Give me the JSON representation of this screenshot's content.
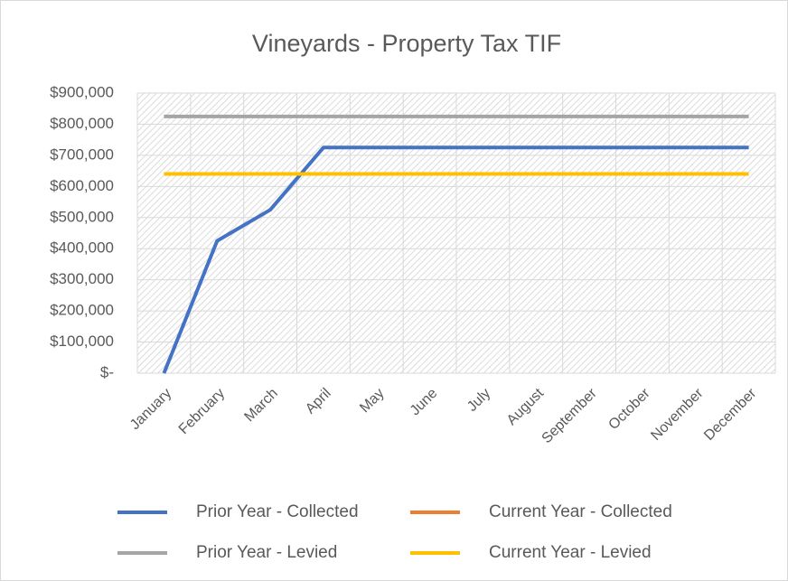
{
  "chart_data": {
    "type": "line",
    "title": "Vineyards - Property Tax TIF",
    "categories": [
      "January",
      "February",
      "March",
      "April",
      "May",
      "June",
      "July",
      "August",
      "September",
      "October",
      "November",
      "December"
    ],
    "series": [
      {
        "name": "Prior Year - Collected",
        "color": "#4472c4",
        "values": [
          0,
          425000,
          525000,
          725000,
          725000,
          725000,
          725000,
          725000,
          725000,
          725000,
          725000,
          725000
        ]
      },
      {
        "name": "Current Year - Collected",
        "color": "#ed7d31",
        "values": [
          null,
          null,
          null,
          null,
          null,
          null,
          null,
          null,
          null,
          null,
          null,
          null
        ]
      },
      {
        "name": "Prior Year - Levied",
        "color": "#a5a5a5",
        "values": [
          825000,
          825000,
          825000,
          825000,
          825000,
          825000,
          825000,
          825000,
          825000,
          825000,
          825000,
          825000
        ]
      },
      {
        "name": "Current Year - Levied",
        "color": "#ffc000",
        "values": [
          640000,
          640000,
          640000,
          640000,
          640000,
          640000,
          640000,
          640000,
          640000,
          640000,
          640000,
          640000
        ]
      }
    ],
    "ylim": [
      0,
      900000
    ],
    "yticks": [
      {
        "value": 0,
        "label": "$-"
      },
      {
        "value": 100000,
        "label": "$100,000"
      },
      {
        "value": 200000,
        "label": "$200,000"
      },
      {
        "value": 300000,
        "label": "$300,000"
      },
      {
        "value": 400000,
        "label": "$400,000"
      },
      {
        "value": 500000,
        "label": "$500,000"
      },
      {
        "value": 600000,
        "label": "$600,000"
      },
      {
        "value": 700000,
        "label": "$700,000"
      },
      {
        "value": 800000,
        "label": "$800,000"
      },
      {
        "value": 900000,
        "label": "$900,000"
      }
    ],
    "grid": true,
    "legend": "bottom"
  }
}
